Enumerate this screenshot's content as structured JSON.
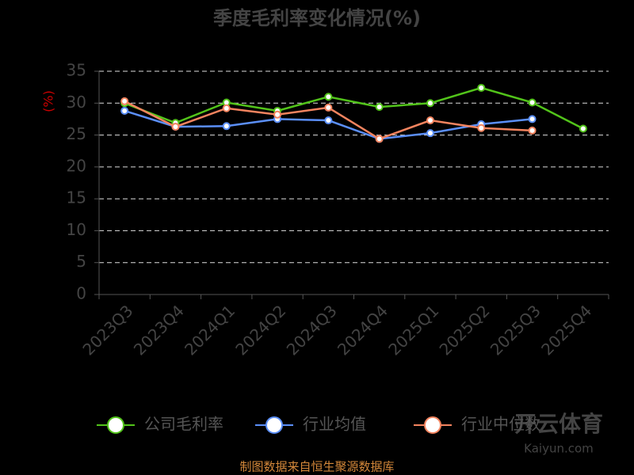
{
  "chart_data": {
    "type": "line",
    "title": "季度毛利率变化情况(%)",
    "y_label": "(%)",
    "categories": [
      "2023Q3",
      "2023Q4",
      "2024Q1",
      "2024Q2",
      "2024Q3",
      "2024Q4",
      "2025Q1",
      "2025Q2",
      "2025Q3",
      "2025Q4"
    ],
    "series": [
      {
        "name": "公司毛利率",
        "color": "#52c41a",
        "values": [
          30.0,
          26.9,
          30.1,
          28.8,
          31.0,
          29.4,
          30.0,
          32.4,
          30.1,
          26.0
        ]
      },
      {
        "name": "行业均值",
        "color": "#5b8ff9",
        "values": [
          28.8,
          26.3,
          26.4,
          27.5,
          27.3,
          24.4,
          25.3,
          26.7,
          27.5,
          null
        ]
      },
      {
        "name": "行业中位数",
        "color": "#f4845f",
        "values": [
          30.3,
          26.3,
          29.2,
          28.2,
          29.3,
          24.4,
          27.3,
          26.1,
          25.7,
          null
        ]
      }
    ],
    "ylim": [
      0,
      35
    ],
    "yticks": [
      0,
      5,
      10,
      15,
      20,
      25,
      30,
      35
    ],
    "grid": true,
    "source": "制图数据来自恒生聚源数据库",
    "watermark": [
      "开云体育",
      "Kaiyun.com"
    ]
  }
}
